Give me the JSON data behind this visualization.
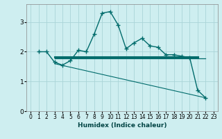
{
  "xlabel": "Humidex (Indice chaleur)",
  "bg_color": "#ceeef0",
  "grid_color": "#aad4d8",
  "line_color": "#006b6b",
  "xlim": [
    -0.5,
    23.5
  ],
  "ylim": [
    0,
    3.6
  ],
  "yticks": [
    0,
    1,
    2,
    3
  ],
  "xticks": [
    0,
    1,
    2,
    3,
    4,
    5,
    6,
    7,
    8,
    9,
    10,
    11,
    12,
    13,
    14,
    15,
    16,
    17,
    18,
    19,
    20,
    21,
    22,
    23
  ],
  "curve1_x": [
    1,
    2,
    3,
    4,
    5,
    6,
    7,
    8,
    9,
    10,
    11,
    12,
    13,
    14,
    15,
    16,
    17,
    18,
    19,
    20,
    21,
    22
  ],
  "curve1_y": [
    2.0,
    2.0,
    1.65,
    1.55,
    1.7,
    2.05,
    2.0,
    2.6,
    3.3,
    3.35,
    2.9,
    2.1,
    2.3,
    2.45,
    2.2,
    2.15,
    1.9,
    1.9,
    1.85,
    1.8,
    0.7,
    0.45
  ],
  "line2_x": [
    3,
    21
  ],
  "line2_y": [
    1.82,
    1.82
  ],
  "line3_x": [
    3,
    16,
    22
  ],
  "line3_y": [
    1.78,
    1.78,
    1.78
  ],
  "line4_x": [
    3,
    22
  ],
  "line4_y": [
    1.6,
    0.45
  ]
}
